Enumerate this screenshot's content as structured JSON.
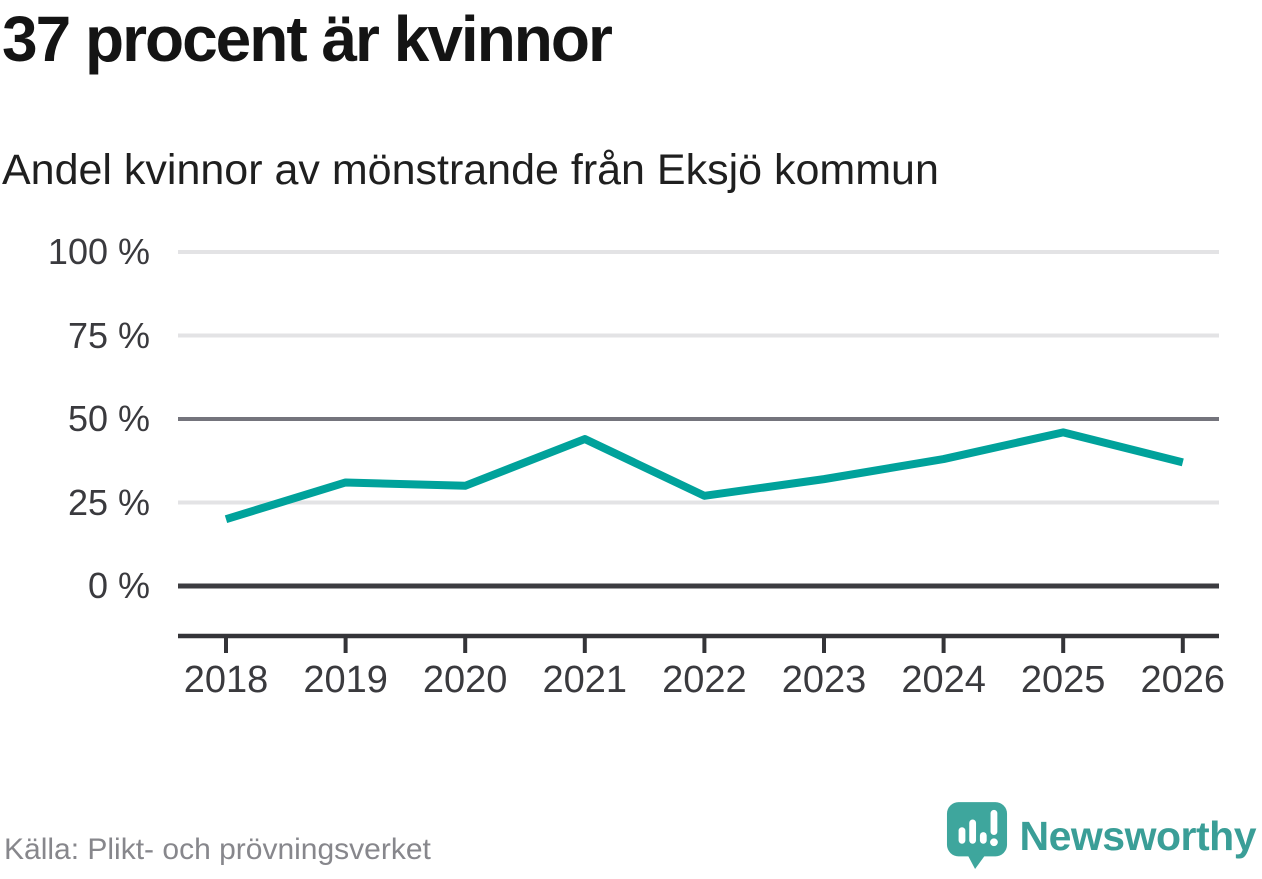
{
  "header": {
    "title": "37 procent är kvinnor",
    "subtitle": "Andel kvinnor av mönstrande från Eksjö kommun"
  },
  "chart_data": {
    "type": "line",
    "title": "37 procent är kvinnor",
    "subtitle": "Andel kvinnor av mönstrande från Eksjö kommun",
    "categories": [
      "2018",
      "2019",
      "2020",
      "2021",
      "2022",
      "2023",
      "2024",
      "2025",
      "2026"
    ],
    "series": [
      {
        "name": "Andel kvinnor av mönstrande",
        "values": [
          20,
          31,
          30,
          44,
          27,
          32,
          38,
          46,
          37
        ]
      }
    ],
    "unit": "%",
    "ylim": [
      0,
      100
    ],
    "yticks": [
      {
        "value": 100,
        "label": "100 %",
        "style": "light"
      },
      {
        "value": 75,
        "label": "75 %",
        "style": "light"
      },
      {
        "value": 50,
        "label": "50 %",
        "style": "mid"
      },
      {
        "value": 25,
        "label": "25 %",
        "style": "light"
      },
      {
        "value": 0,
        "label": "0 %",
        "style": "dark"
      }
    ],
    "grid": "horizontal",
    "legend_position": "none",
    "line_color": "#00a29b"
  },
  "footer": {
    "source": "Källa: Plikt- och prövningsverket",
    "brand": "Newsworthy"
  },
  "colors": {
    "accent_teal": "#00a29b",
    "logo_teal": "#3ea69d",
    "brand_text_teal": "#3a9e97",
    "grid_light": "#e3e3e5",
    "grid_mid": "#74747c",
    "grid_dark": "#3c3c40",
    "axis_dark": "#343438",
    "text_dark": "#141414",
    "text_gray": "#87878c"
  },
  "icons": {
    "logo_mark": "newsworthy-speech-bubble-barchart-icon"
  }
}
